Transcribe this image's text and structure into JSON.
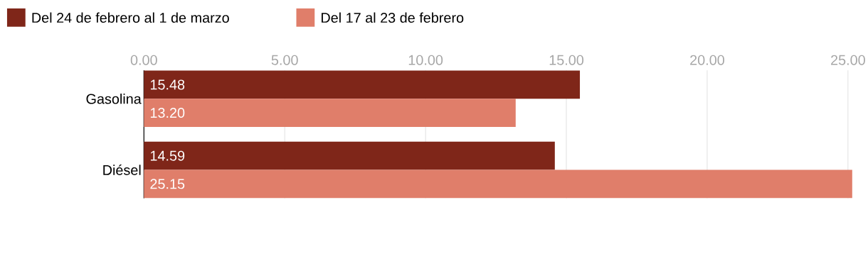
{
  "chart_data": {
    "type": "bar",
    "orientation": "horizontal",
    "categories": [
      "Gasolina",
      "Diésel"
    ],
    "series": [
      {
        "name": "Del 24 de febrero al 1 de marzo",
        "color": "#7f2619",
        "values": [
          15.48,
          14.59
        ],
        "value_labels": [
          "15.48",
          "14.59"
        ]
      },
      {
        "name": "Del 17 al 23 de febrero",
        "color": "#e07e6a",
        "values": [
          13.2,
          25.15
        ],
        "value_labels": [
          "13.20",
          "25.15"
        ]
      }
    ],
    "xlim": [
      0,
      25.15
    ],
    "xticks": [
      {
        "value": 0,
        "label": "0.00"
      },
      {
        "value": 5,
        "label": "5.00"
      },
      {
        "value": 10,
        "label": "10.00"
      },
      {
        "value": 15,
        "label": "15.00"
      },
      {
        "value": 20,
        "label": "20.00"
      },
      {
        "value": 25,
        "label": "25.00"
      }
    ],
    "grid": "x",
    "legend": "top left"
  }
}
